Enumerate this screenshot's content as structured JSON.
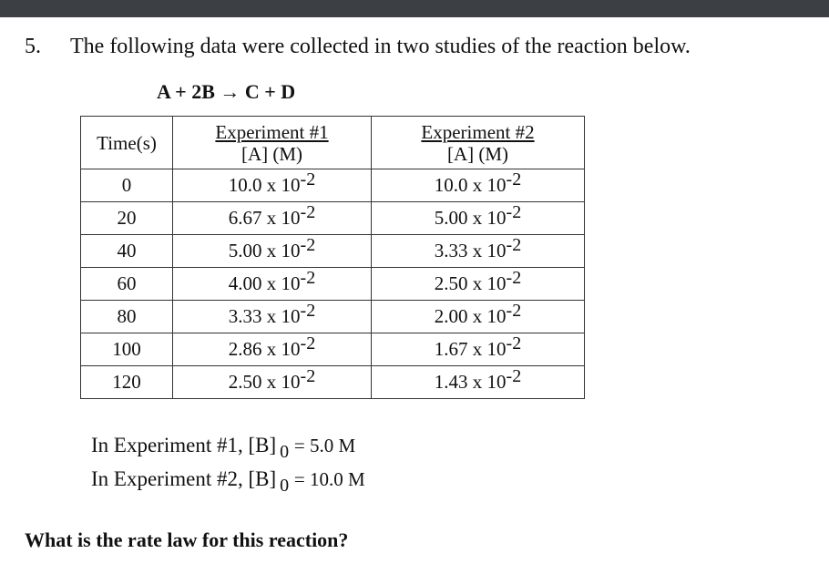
{
  "problem": {
    "number": "5.",
    "text": "The following data were collected in two studies of the reaction below.",
    "reaction": "A + 2B → C + D"
  },
  "table": {
    "headers": {
      "time": "Time(s)",
      "exp1_title": "Experiment #1",
      "exp1_unit": "[A] (M)",
      "exp2_title": "Experiment #2",
      "exp2_unit": "[A] (M)"
    },
    "rows": [
      {
        "time": "0",
        "exp1_base": "10.0 x 10",
        "exp1_exp": "-2",
        "exp2_base": "10.0 x 10",
        "exp2_exp": "-2"
      },
      {
        "time": "20",
        "exp1_base": "6.67 x 10",
        "exp1_exp": "-2",
        "exp2_base": "5.00 x 10",
        "exp2_exp": "-2"
      },
      {
        "time": "40",
        "exp1_base": "5.00 x 10",
        "exp1_exp": "-2",
        "exp2_base": "3.33 x 10",
        "exp2_exp": "-2"
      },
      {
        "time": "60",
        "exp1_base": "4.00 x 10",
        "exp1_exp": "-2",
        "exp2_base": "2.50 x 10",
        "exp2_exp": "-2"
      },
      {
        "time": "80",
        "exp1_base": "3.33 x 10",
        "exp1_exp": "-2",
        "exp2_base": "2.00 x 10",
        "exp2_exp": "-2"
      },
      {
        "time": "100",
        "exp1_base": "2.86 x 10",
        "exp1_exp": "-2",
        "exp2_base": "1.67 x 10",
        "exp2_exp": "-2"
      },
      {
        "time": "120",
        "exp1_base": "2.50 x 10",
        "exp1_exp": "-2",
        "exp2_base": "1.43 x 10",
        "exp2_exp": "-2"
      }
    ]
  },
  "conditions": {
    "exp1": {
      "prefix": "In Experiment #1, [B]",
      "sub": "0",
      "suffix": "= 5.0 M"
    },
    "exp2": {
      "prefix": "In Experiment #2, [B]",
      "sub": "0",
      "suffix": "= 10.0 M"
    }
  },
  "question": "What is the rate law for this reaction?",
  "colors": {
    "topbar": "#3c3f43",
    "text": "#111111",
    "border": "#333333"
  }
}
